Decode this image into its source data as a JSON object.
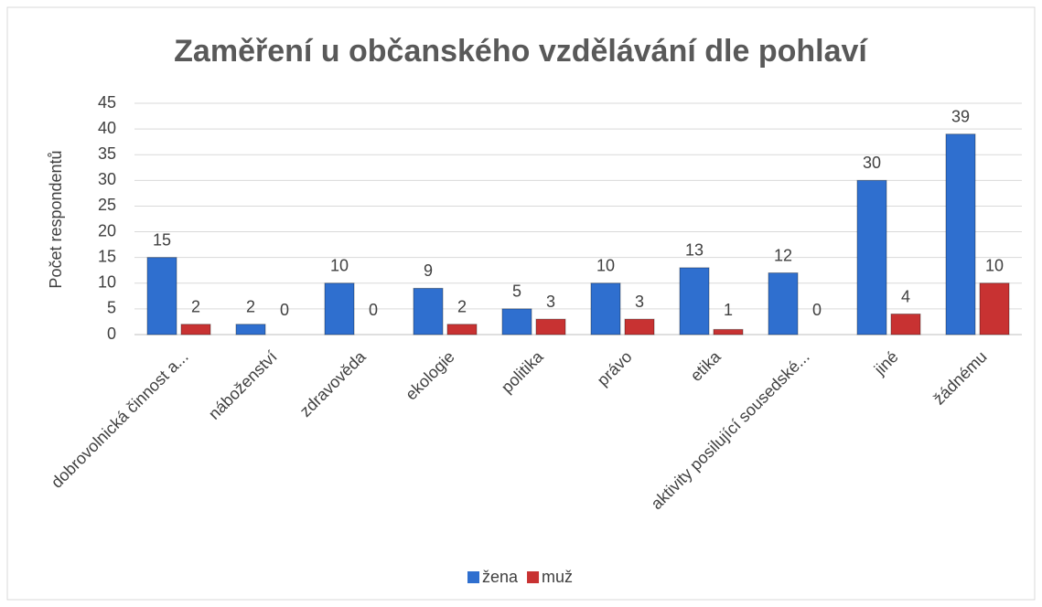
{
  "chart_data": {
    "type": "bar",
    "title": "Zaměření u občanského vzdělávání dle pohlaví",
    "y_label": "Počet respondentů",
    "categories": [
      "dobrovolnická činnost a...",
      "náboženství",
      "zdravověda",
      "ekologie",
      "politika",
      "právo",
      "etika",
      "aktivity posilující sousedské...",
      "jiné",
      "žádnému"
    ],
    "series": [
      {
        "name": "žena",
        "color": "#2f6fcf",
        "values": [
          15,
          2,
          10,
          9,
          5,
          10,
          13,
          12,
          30,
          39
        ]
      },
      {
        "name": "muž",
        "color": "#c83232",
        "values": [
          2,
          0,
          0,
          2,
          3,
          3,
          1,
          0,
          4,
          10
        ]
      }
    ],
    "ylim": [
      0,
      45
    ],
    "yticks": [
      0,
      5,
      10,
      15,
      20,
      25,
      30,
      35,
      40,
      45
    ],
    "grid": true,
    "legend": "bottom"
  }
}
